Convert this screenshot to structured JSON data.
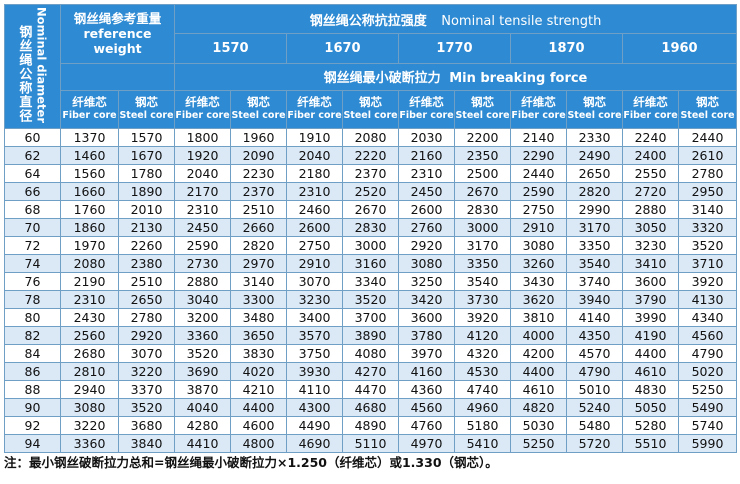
{
  "header": {
    "nominal_diameter_cn": "钢丝绳公称直径",
    "nominal_diameter_en": "Nominal diameter",
    "ref_weight_cn": "钢丝绳参考重量",
    "ref_weight_en": "reference weight",
    "tensile_cn": "钢丝绳公称抗拉强度",
    "tensile_en": "Nominal tensile strength",
    "grades": [
      "1570",
      "1670",
      "1770",
      "1870",
      "1960"
    ],
    "min_breaking_cn": "钢丝绳最小破断拉力",
    "min_breaking_en": "Min breaking force",
    "fiber_cn": "纤维芯",
    "fiber_en": "Fiber core",
    "steel_cn": "钢芯",
    "steel_en": "Steel core"
  },
  "rows": [
    [
      "60",
      "1370",
      "1570",
      "1800",
      "1960",
      "1910",
      "2080",
      "2030",
      "2200",
      "2140",
      "2330",
      "2240",
      "2440"
    ],
    [
      "62",
      "1460",
      "1670",
      "1920",
      "2090",
      "2040",
      "2220",
      "2160",
      "2350",
      "2290",
      "2490",
      "2400",
      "2610"
    ],
    [
      "64",
      "1560",
      "1780",
      "2040",
      "2230",
      "2180",
      "2370",
      "2310",
      "2500",
      "2440",
      "2650",
      "2550",
      "2780"
    ],
    [
      "66",
      "1660",
      "1890",
      "2170",
      "2370",
      "2310",
      "2520",
      "2450",
      "2670",
      "2590",
      "2820",
      "2720",
      "2950"
    ],
    [
      "68",
      "1760",
      "2010",
      "2310",
      "2510",
      "2460",
      "2670",
      "2600",
      "2830",
      "2750",
      "2990",
      "2880",
      "3140"
    ],
    [
      "70",
      "1860",
      "2130",
      "2450",
      "2660",
      "2600",
      "2830",
      "2760",
      "3000",
      "2910",
      "3170",
      "3050",
      "3320"
    ],
    [
      "72",
      "1970",
      "2260",
      "2590",
      "2820",
      "2750",
      "3000",
      "2920",
      "3170",
      "3080",
      "3350",
      "3230",
      "3520"
    ],
    [
      "74",
      "2080",
      "2380",
      "2730",
      "2970",
      "2910",
      "3160",
      "3080",
      "3350",
      "3260",
      "3540",
      "3410",
      "3710"
    ],
    [
      "76",
      "2190",
      "2510",
      "2880",
      "3140",
      "3070",
      "3340",
      "3250",
      "3540",
      "3430",
      "3740",
      "3600",
      "3920"
    ],
    [
      "78",
      "2310",
      "2650",
      "3040",
      "3300",
      "3230",
      "3520",
      "3420",
      "3730",
      "3620",
      "3940",
      "3790",
      "4130"
    ],
    [
      "80",
      "2430",
      "2780",
      "3200",
      "3480",
      "3400",
      "3700",
      "3600",
      "3920",
      "3810",
      "4140",
      "3990",
      "4340"
    ],
    [
      "82",
      "2560",
      "2920",
      "3360",
      "3650",
      "3570",
      "3890",
      "3780",
      "4120",
      "4000",
      "4350",
      "4190",
      "4560"
    ],
    [
      "84",
      "2680",
      "3070",
      "3520",
      "3830",
      "3750",
      "4080",
      "3970",
      "4320",
      "4200",
      "4570",
      "4400",
      "4790"
    ],
    [
      "86",
      "2810",
      "3220",
      "3690",
      "4020",
      "3930",
      "4270",
      "4160",
      "4530",
      "4400",
      "4790",
      "4610",
      "5020"
    ],
    [
      "88",
      "2940",
      "3370",
      "3870",
      "4210",
      "4110",
      "4470",
      "4360",
      "4740",
      "4610",
      "5010",
      "4830",
      "5250"
    ],
    [
      "90",
      "3080",
      "3520",
      "4040",
      "4400",
      "4300",
      "4680",
      "4560",
      "4960",
      "4820",
      "5240",
      "5050",
      "5490"
    ],
    [
      "92",
      "3220",
      "3680",
      "4280",
      "4600",
      "4490",
      "4890",
      "4760",
      "5180",
      "5030",
      "5480",
      "5280",
      "5740"
    ],
    [
      "94",
      "3360",
      "3840",
      "4410",
      "4800",
      "4690",
      "5110",
      "4970",
      "5410",
      "5250",
      "5720",
      "5510",
      "5990"
    ]
  ],
  "note": "注：最小钢丝破断拉力总和=钢丝绳最小破断拉力×1.250（纤维芯）或1.330（钢芯）。",
  "colors": {
    "header_bg": "#2e8ad2",
    "alt_row_bg": "#dbe8f6",
    "border": "#6f9fc4"
  }
}
